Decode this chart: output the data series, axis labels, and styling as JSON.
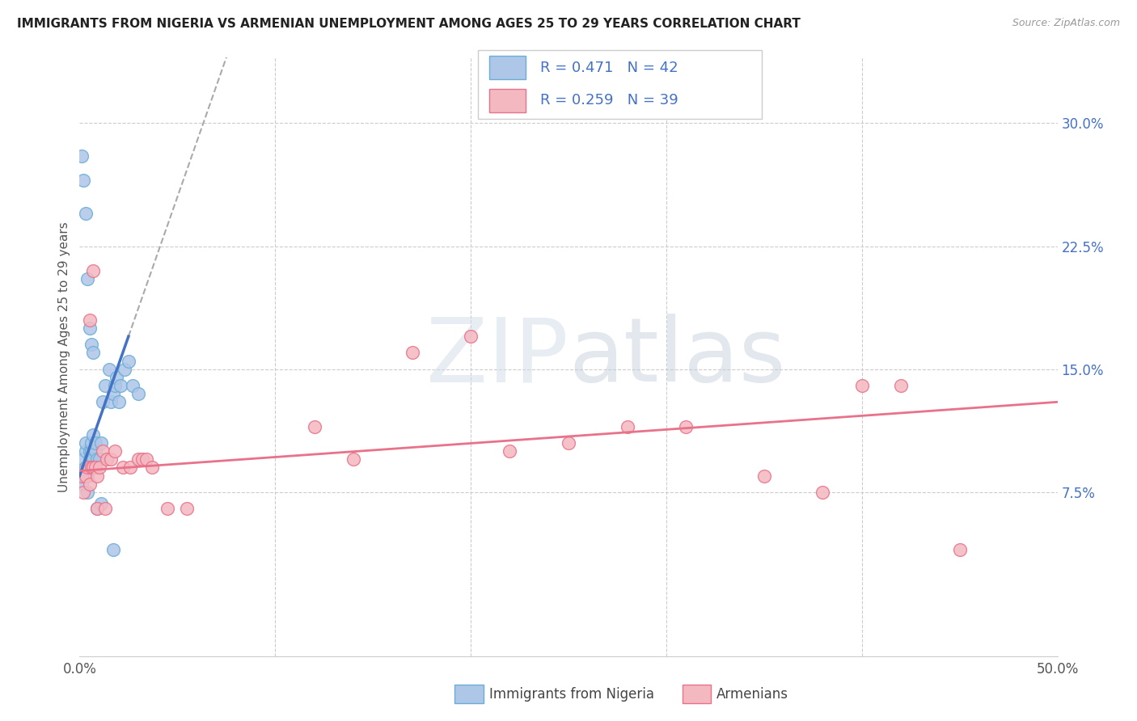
{
  "title": "IMMIGRANTS FROM NIGERIA VS ARMENIAN UNEMPLOYMENT AMONG AGES 25 TO 29 YEARS CORRELATION CHART",
  "source": "Source: ZipAtlas.com",
  "ylabel": "Unemployment Among Ages 25 to 29 years",
  "xlim": [
    0.0,
    0.5
  ],
  "ylim": [
    -0.025,
    0.34
  ],
  "yticks_right": [
    0.075,
    0.15,
    0.225,
    0.3
  ],
  "yticklabels_right": [
    "7.5%",
    "15.0%",
    "22.5%",
    "30.0%"
  ],
  "nigeria_color": "#aec6e8",
  "nigeria_edge": "#6aaed6",
  "armenian_color": "#f4b8c1",
  "armenian_edge": "#e8728a",
  "nigeria_line_color": "#4472c4",
  "armenian_line_color": "#e8728a",
  "nigeria_R": 0.471,
  "nigeria_N": 42,
  "armenian_R": 0.259,
  "armenian_N": 39,
  "legend_color": "#4472c4",
  "nigeria_scatter_x": [
    0.001,
    0.002,
    0.002,
    0.003,
    0.003,
    0.003,
    0.004,
    0.004,
    0.005,
    0.005,
    0.006,
    0.006,
    0.007,
    0.007,
    0.008,
    0.008,
    0.009,
    0.01,
    0.011,
    0.012,
    0.013,
    0.015,
    0.016,
    0.017,
    0.018,
    0.019,
    0.02,
    0.021,
    0.023,
    0.025,
    0.027,
    0.03,
    0.001,
    0.002,
    0.003,
    0.004,
    0.005,
    0.006,
    0.007,
    0.009,
    0.011,
    0.017
  ],
  "nigeria_scatter_y": [
    0.08,
    0.095,
    0.085,
    0.09,
    0.1,
    0.105,
    0.085,
    0.075,
    0.095,
    0.1,
    0.1,
    0.105,
    0.095,
    0.11,
    0.1,
    0.105,
    0.095,
    0.095,
    0.105,
    0.13,
    0.14,
    0.15,
    0.13,
    0.135,
    0.14,
    0.145,
    0.13,
    0.14,
    0.15,
    0.155,
    0.14,
    0.135,
    0.28,
    0.265,
    0.245,
    0.205,
    0.175,
    0.165,
    0.16,
    0.065,
    0.068,
    0.04
  ],
  "armenian_scatter_x": [
    0.001,
    0.002,
    0.003,
    0.004,
    0.005,
    0.006,
    0.007,
    0.008,
    0.009,
    0.01,
    0.012,
    0.014,
    0.016,
    0.018,
    0.022,
    0.026,
    0.03,
    0.032,
    0.034,
    0.037,
    0.045,
    0.055,
    0.12,
    0.14,
    0.17,
    0.2,
    0.22,
    0.25,
    0.28,
    0.31,
    0.35,
    0.38,
    0.4,
    0.42,
    0.45,
    0.005,
    0.007,
    0.009,
    0.013
  ],
  "armenian_scatter_y": [
    0.085,
    0.075,
    0.085,
    0.09,
    0.08,
    0.09,
    0.09,
    0.09,
    0.085,
    0.09,
    0.1,
    0.095,
    0.095,
    0.1,
    0.09,
    0.09,
    0.095,
    0.095,
    0.095,
    0.09,
    0.065,
    0.065,
    0.115,
    0.095,
    0.16,
    0.17,
    0.1,
    0.105,
    0.115,
    0.115,
    0.085,
    0.075,
    0.14,
    0.14,
    0.04,
    0.18,
    0.21,
    0.065,
    0.065
  ]
}
